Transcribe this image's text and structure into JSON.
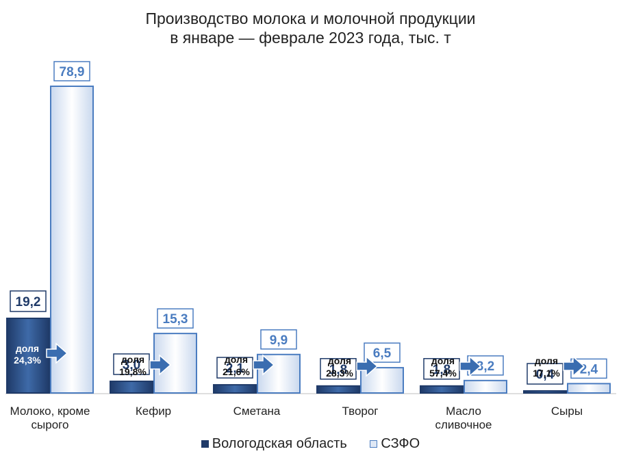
{
  "title": [
    "Производство молока и молочной продукции",
    "в январе — феврале 2023 года, тыс. т"
  ],
  "colors": {
    "region": "#1f3a68",
    "region_light": "#3e6aa8",
    "sz": "#4a7cc0",
    "sz_light": "#ffffff",
    "arrow": "#3a6db0",
    "label_dark": "#1f3a68",
    "label_light": "#4a7cc0"
  },
  "chart_data": {
    "type": "bar",
    "categories": [
      [
        "Молоко, кроме",
        "сырого"
      ],
      [
        "Кефир"
      ],
      [
        "Сметана"
      ],
      [
        "Творог"
      ],
      [
        "Масло",
        "сливочное"
      ],
      [
        "Сыры"
      ]
    ],
    "series": [
      {
        "name": "Вологодская область",
        "values": [
          19.2,
          3.0,
          2.1,
          1.8,
          1.8,
          0.4
        ],
        "labels": [
          "19,2",
          "3,0",
          "2,1",
          "1,8",
          "1,8",
          "0,4"
        ]
      },
      {
        "name": "СЗФО",
        "values": [
          78.9,
          15.3,
          9.9,
          6.5,
          3.2,
          2.4
        ],
        "labels": [
          "78,9",
          "15,3",
          "9,9",
          "6,5",
          "3,2",
          "2,4"
        ]
      }
    ],
    "share": {
      "word": "доля",
      "values": [
        "24,3%",
        "19,8%",
        "21,6%",
        "28,3%",
        "57,4%",
        "17,1%"
      ]
    },
    "legend": [
      "Вологодская область",
      "СЗФО"
    ],
    "legend_position": "bottom",
    "ylim": [
      0,
      80
    ],
    "grid": false
  }
}
